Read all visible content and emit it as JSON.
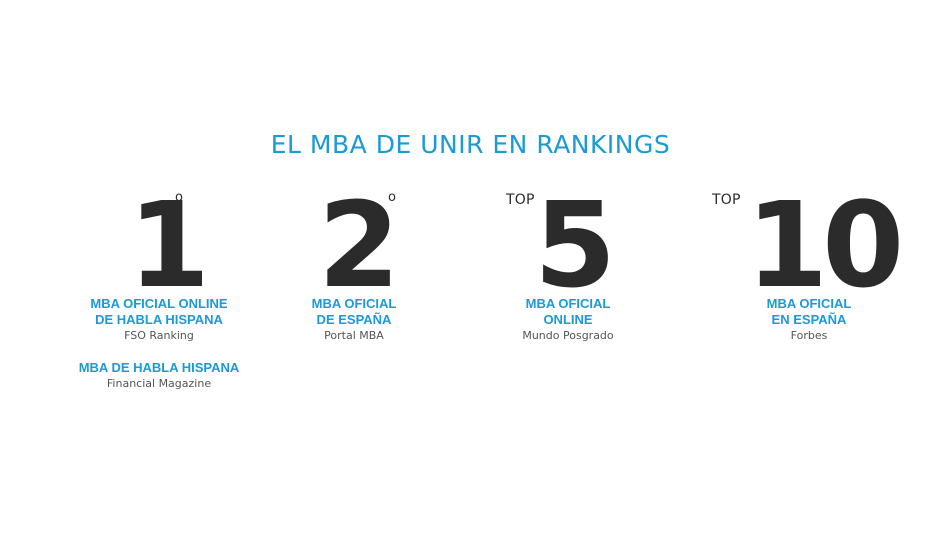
{
  "title": "EL MBA DE UNIR EN RANKINGS",
  "rankings": [
    {
      "number": "1",
      "prefix": "",
      "suffix": "o",
      "label_line1": "MBA OFICIAL ONLINE",
      "label_line2": "DE HABLA HISPANA",
      "source": "FSO Ranking",
      "extra_label": "MBA DE HABLA HISPANA",
      "extra_source": "Financial Magazine"
    },
    {
      "number": "2",
      "prefix": "",
      "suffix": "o",
      "label_line1": "MBA OFICIAL",
      "label_line2": "DE ESPAÑA",
      "source": "Portal MBA"
    },
    {
      "number": "5",
      "prefix": "TOP",
      "suffix": "",
      "label_line1": "MBA OFICIAL",
      "label_line2": "ONLINE",
      "source": "Mundo Posgrado"
    },
    {
      "number": "10",
      "prefix": "TOP",
      "suffix": "",
      "label_line1": "MBA OFICIAL",
      "label_line2": "EN ESPAÑA",
      "source": "Forbes"
    }
  ],
  "colors": {
    "accent": "#1a9ad6",
    "number": "#2b2b2b",
    "source_text": "#555555",
    "background": "#ffffff"
  }
}
